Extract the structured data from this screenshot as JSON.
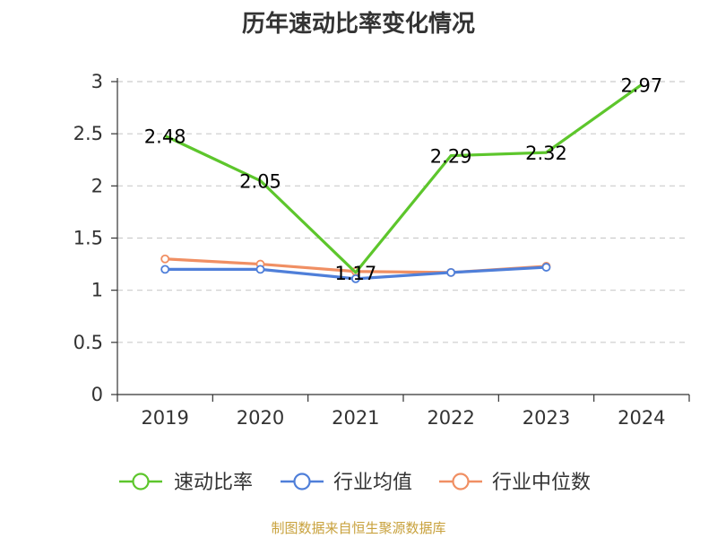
{
  "chart_data": {
    "type": "line",
    "title": "历年速动比率变化情况",
    "categories": [
      "2019",
      "2020",
      "2021",
      "2022",
      "2023",
      "2024"
    ],
    "ylim": [
      0,
      3
    ],
    "yticks": [
      "0",
      "0.5",
      "1",
      "1.5",
      "2",
      "2.5",
      "3"
    ],
    "grid": "horizontal-dashed",
    "legend_position": "bottom",
    "series": [
      {
        "name": "速动比率",
        "color": "#5dc62c",
        "values": [
          2.48,
          2.05,
          1.17,
          2.29,
          2.32,
          2.97
        ],
        "labels": [
          "2.48",
          "2.05",
          "1.17",
          "2.29",
          "2.32",
          "2.97"
        ],
        "markers": false
      },
      {
        "name": "行业均值",
        "color": "#4f7fd9",
        "values": [
          1.2,
          1.2,
          1.11,
          1.17,
          1.22,
          null
        ],
        "markers": true
      },
      {
        "name": "行业中位数",
        "color": "#f08f63",
        "values": [
          1.3,
          1.25,
          1.18,
          1.17,
          1.23,
          null
        ],
        "markers": true
      }
    ]
  },
  "footer": {
    "source": "制图数据来自恒生聚源数据库"
  }
}
